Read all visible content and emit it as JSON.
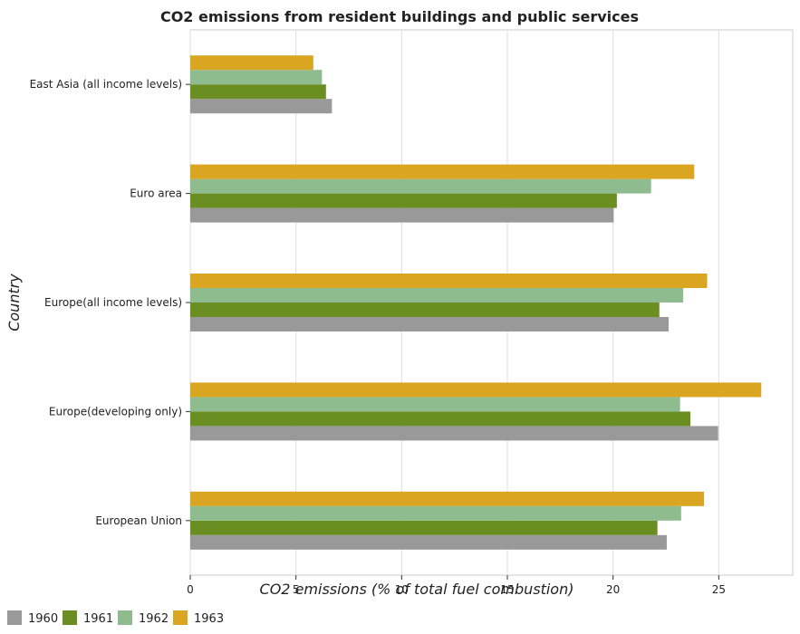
{
  "chart_data": {
    "type": "bar",
    "orientation": "horizontal",
    "title": "CO2 emissions from resident buildings and public services",
    "xlabel": "CO2 emissions (% of total fuel combustion)",
    "ylabel": "Country",
    "xlim": [
      0,
      28.5
    ],
    "xticks": [
      0,
      5,
      10,
      15,
      20,
      25
    ],
    "grid": true,
    "legend_position": "bottom-left",
    "categories": [
      "East Asia (all income levels)",
      "Euro area",
      "Europe(all income levels)",
      "Europe(developing only)",
      "European Union"
    ],
    "series": [
      {
        "name": "1960",
        "color": "#999999",
        "values": [
          6.7,
          20.03,
          22.63,
          24.97,
          22.54
        ]
      },
      {
        "name": "1961",
        "color": "#6b8e23",
        "values": [
          6.42,
          20.18,
          22.19,
          23.66,
          22.1
        ]
      },
      {
        "name": "1962",
        "color": "#8fbc8f",
        "values": [
          6.23,
          21.8,
          23.32,
          23.17,
          23.22
        ]
      },
      {
        "name": "1963",
        "color": "#daa520",
        "values": [
          5.82,
          23.84,
          24.45,
          27.01,
          24.3
        ]
      }
    ]
  }
}
